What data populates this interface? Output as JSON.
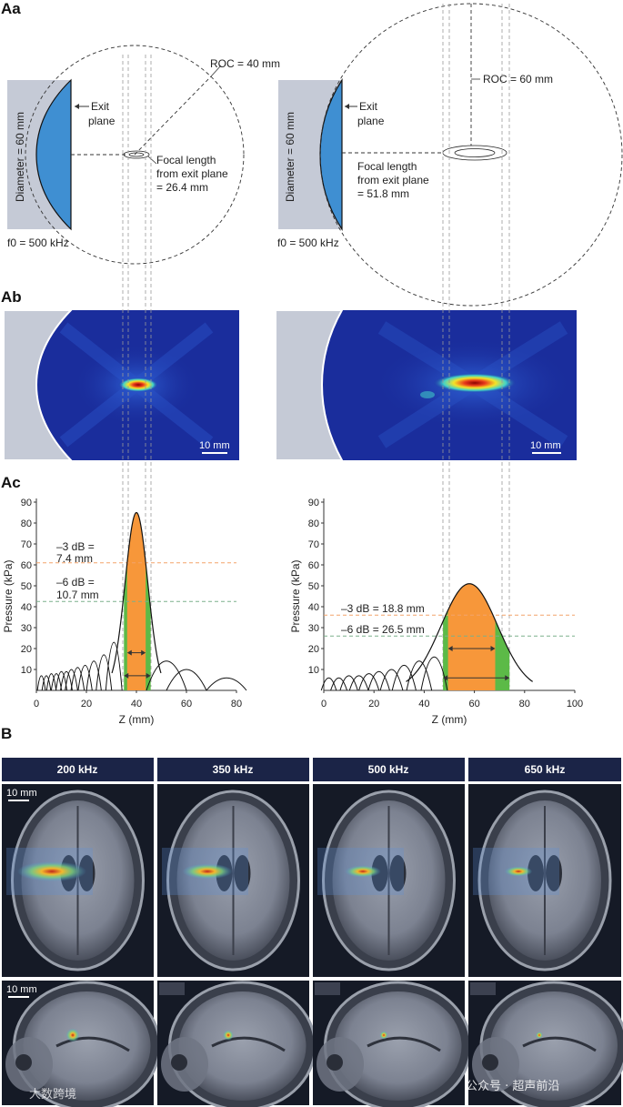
{
  "panels": {
    "Aa": "Aa",
    "Ab": "Ab",
    "Ac": "Ac",
    "B": "B"
  },
  "geometry_left": {
    "roc": "ROC = 40 mm",
    "exit_plane": [
      "Exit",
      "plane"
    ],
    "focal": [
      "Focal length",
      "from exit plane",
      "= 26.4 mm"
    ],
    "diameter": "Diameter = 60 mm",
    "f0": "f0 = 500 kHz"
  },
  "geometry_right": {
    "roc": "ROC = 60 mm",
    "exit_plane": [
      "Exit",
      "plane"
    ],
    "focal": [
      "Focal length",
      "from exit plane",
      "= 51.8 mm"
    ],
    "diameter": "Diameter = 60 mm",
    "f0": "f0 = 500 kHz"
  },
  "field_maps": {
    "scale_left": "10 mm",
    "scale_right": "10 mm"
  },
  "chart_data": [
    {
      "type": "line",
      "title": "",
      "xlabel": "Z (mm)",
      "ylabel": "Pressure (kPa)",
      "xlim": [
        0,
        80
      ],
      "ylim": [
        0,
        90
      ],
      "xticks": [
        "0",
        "20",
        "40",
        "60",
        "80"
      ],
      "yticks": [
        "10",
        "20",
        "30",
        "40",
        "50",
        "60",
        "70",
        "80",
        "90"
      ],
      "peak": {
        "z": 40,
        "pressure": 85
      },
      "threshold_3db": {
        "label": [
          "–3 dB =",
          "7.4 mm"
        ],
        "pressure": 61,
        "z_range": [
          36.3,
          43.7
        ]
      },
      "threshold_6db": {
        "label": [
          "–6 dB =",
          "10.7 mm"
        ],
        "pressure": 42.5,
        "z_range": [
          35.0,
          45.7
        ]
      },
      "sidelobes": [
        {
          "z": 2,
          "p": 7
        },
        {
          "z": 4,
          "p": 7
        },
        {
          "z": 6,
          "p": 8
        },
        {
          "z": 8,
          "p": 8
        },
        {
          "z": 10,
          "p": 9
        },
        {
          "z": 12,
          "p": 9
        },
        {
          "z": 14,
          "p": 10
        },
        {
          "z": 16.5,
          "p": 11
        },
        {
          "z": 19.5,
          "p": 12
        },
        {
          "z": 23,
          "p": 14
        },
        {
          "z": 27,
          "p": 17
        },
        {
          "z": 31,
          "p": 23
        },
        {
          "z": 52,
          "p": 14
        },
        {
          "z": 60,
          "p": 10
        },
        {
          "z": 76,
          "p": 6
        }
      ]
    },
    {
      "type": "line",
      "title": "",
      "xlabel": "Z (mm)",
      "ylabel": "Pressure (kPa)",
      "xlim": [
        0,
        100
      ],
      "ylim": [
        0,
        90
      ],
      "xticks": [
        "0",
        "20",
        "40",
        "60",
        "80",
        "100"
      ],
      "yticks": [
        "10",
        "20",
        "30",
        "40",
        "50",
        "60",
        "70",
        "80",
        "90"
      ],
      "peak": {
        "z": 58,
        "pressure": 51
      },
      "threshold_3db": {
        "label": [
          "–3 dB = 18.8 mm"
        ],
        "pressure": 36,
        "z_range": [
          49.5,
          68.3
        ]
      },
      "threshold_6db": {
        "label": [
          "–6 dB = 26.5 mm"
        ],
        "pressure": 26,
        "z_range": [
          47.5,
          74
        ]
      },
      "sidelobes": [
        {
          "z": 2,
          "p": 6
        },
        {
          "z": 6,
          "p": 6
        },
        {
          "z": 10,
          "p": 7
        },
        {
          "z": 14,
          "p": 7
        },
        {
          "z": 18,
          "p": 8
        },
        {
          "z": 22,
          "p": 9
        },
        {
          "z": 27,
          "p": 10
        },
        {
          "z": 32,
          "p": 12
        },
        {
          "z": 38,
          "p": 14
        },
        {
          "z": 44,
          "p": 16
        }
      ]
    }
  ],
  "brain": {
    "frequencies": [
      "200 kHz",
      "350 kHz",
      "500 kHz",
      "650 kHz"
    ],
    "scale_axial": "10 mm",
    "scale_sagittal": "10 mm"
  },
  "watermark": {
    "left": "大数跨境",
    "right": "公众号 · 超声前沿"
  },
  "colors": {
    "transducer_gray": "#c5cad6",
    "transducer_blue": "#3f8fd2",
    "field_bg": "#1a2d9c",
    "orange_band": "#f7973a",
    "green_band": "#5cba47",
    "freq_header": "#1b2447",
    "line_3db": "#f4a46a",
    "line_6db": "#7bb08b"
  }
}
